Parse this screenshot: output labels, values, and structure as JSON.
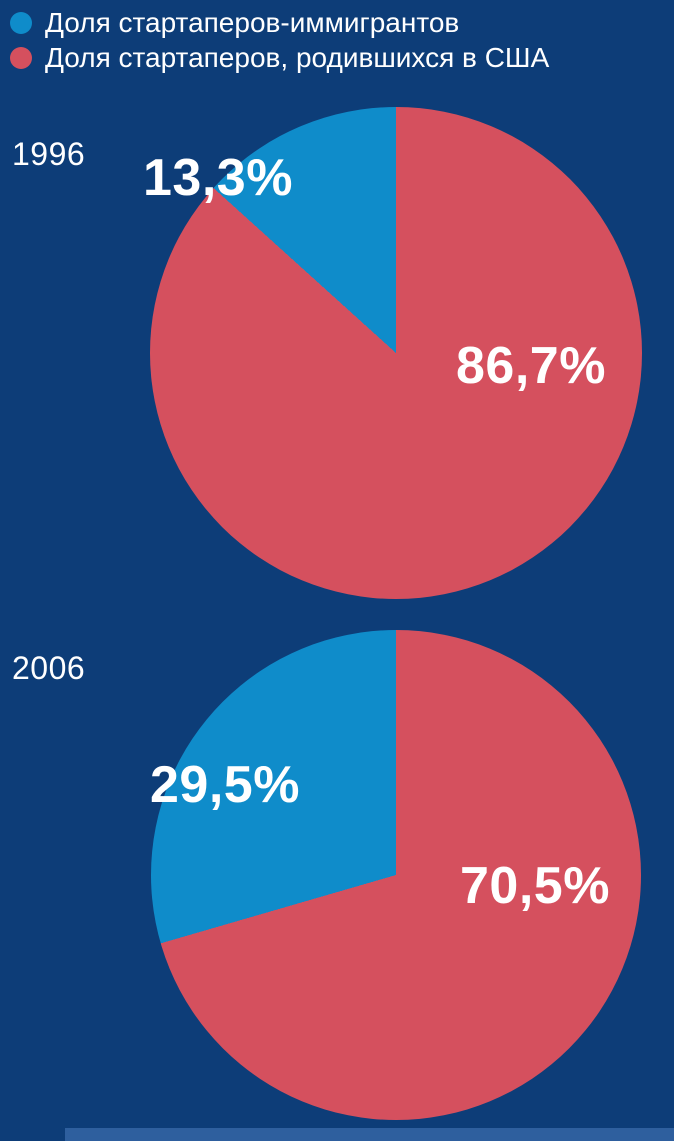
{
  "colors": {
    "background": "#0d3d78",
    "immigrant_blue": "#0f8cca",
    "us_born_red": "#d5505e",
    "text": "#ffffff",
    "footer_strip": "#2e5f9e"
  },
  "legend": {
    "items": [
      {
        "label": "Доля стартаперов-иммигрантов",
        "color": "#0f8cca"
      },
      {
        "label": "Доля стартаперов, родившихся в США",
        "color": "#d5505e"
      }
    ]
  },
  "chart_data": [
    {
      "type": "pie",
      "title": "1996",
      "labels": [
        "Доля стартаперов-иммигрантов",
        "Доля стартаперов, родившихся в США"
      ],
      "values": [
        13.3,
        86.7
      ],
      "colors": [
        "#0f8cca",
        "#d5505e"
      ],
      "slice_labels": [
        "13,3%",
        "86,7%"
      ],
      "draw_order": [
        1,
        0
      ],
      "start_angle_deg": 0,
      "direction": "clockwise",
      "legend_position": "top-left"
    },
    {
      "type": "pie",
      "title": "2006",
      "labels": [
        "Доля стартаперов-иммигрантов",
        "Доля стартаперов, родившихся в США"
      ],
      "values": [
        29.5,
        70.5
      ],
      "colors": [
        "#0f8cca",
        "#d5505e"
      ],
      "slice_labels": [
        "29,5%",
        "70,5%"
      ],
      "draw_order": [
        1,
        0
      ],
      "start_angle_deg": 0,
      "direction": "clockwise",
      "legend_position": "top-left"
    }
  ]
}
